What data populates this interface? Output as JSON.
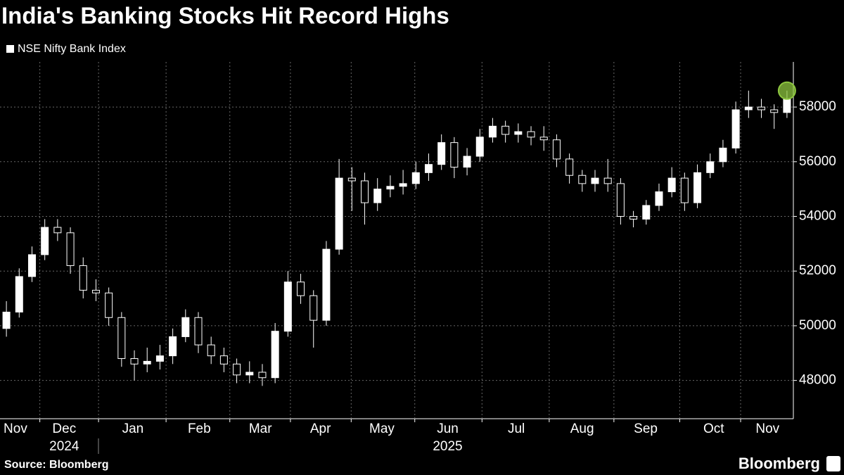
{
  "chart_data": {
    "type": "candlestick",
    "title": "India's Banking Stocks Hit Record Highs",
    "legend": "NSE Nifty Bank Index",
    "source": "Source: Bloomberg",
    "brand": "Bloomberg",
    "color": "#ffffff",
    "highlight_color": "#8dc63f",
    "grid": true,
    "open": [
      49900,
      50500,
      51800,
      52600,
      53600,
      53400,
      52200,
      51300,
      51200,
      50300,
      48800,
      48600,
      48700,
      48900,
      49600,
      50300,
      49300,
      48900,
      48600,
      48200,
      48300,
      48100,
      49800,
      51600,
      51100,
      50200,
      52800,
      55400,
      55300,
      54500,
      55000,
      55100,
      55200,
      55600,
      55900,
      56700,
      55800,
      56200,
      56900,
      57300,
      57000,
      57100,
      56900,
      56800,
      56100,
      55500,
      55200,
      55400,
      55200,
      54000,
      53900,
      54400,
      54900,
      55400,
      54500,
      55600,
      56000,
      56500,
      57900,
      58000,
      57900,
      57800
    ],
    "high": [
      50900,
      52100,
      52900,
      53900,
      53900,
      53600,
      52500,
      51700,
      51400,
      50500,
      49100,
      49200,
      49300,
      49900,
      50600,
      50500,
      49600,
      49200,
      48800,
      48700,
      48600,
      50100,
      52000,
      51900,
      51300,
      53100,
      56100,
      55800,
      55600,
      55400,
      55500,
      55700,
      56000,
      56300,
      57000,
      56900,
      56500,
      57200,
      57600,
      57500,
      57400,
      57300,
      57300,
      57000,
      56300,
      55700,
      55700,
      56100,
      55400,
      54200,
      54600,
      55200,
      55800,
      55600,
      55900,
      56300,
      56800,
      58200,
      58600,
      58300,
      58100,
      58600
    ],
    "low": [
      49600,
      50300,
      51600,
      52400,
      53100,
      51900,
      51000,
      50900,
      50000,
      48500,
      48000,
      48300,
      48400,
      48600,
      49400,
      49000,
      48600,
      48300,
      47900,
      47900,
      47800,
      47900,
      49600,
      50800,
      49200,
      50000,
      52600,
      54200,
      53700,
      54200,
      54700,
      54800,
      55000,
      55300,
      55700,
      55400,
      55500,
      56000,
      56700,
      56700,
      56700,
      56600,
      56400,
      55800,
      55200,
      54900,
      54900,
      54900,
      53700,
      53600,
      53700,
      54200,
      54700,
      54200,
      54300,
      55400,
      55800,
      56300,
      57600,
      57600,
      57200,
      57600
    ],
    "close": [
      50500,
      51800,
      52600,
      53600,
      53400,
      52200,
      51300,
      51200,
      50300,
      48800,
      48600,
      48700,
      48900,
      49600,
      50300,
      49300,
      48900,
      48600,
      48200,
      48300,
      48100,
      49800,
      51600,
      51100,
      50200,
      52800,
      55400,
      55300,
      54500,
      55000,
      55100,
      55200,
      55600,
      55900,
      56700,
      55800,
      56200,
      56900,
      57300,
      57000,
      57100,
      56900,
      56800,
      56100,
      55500,
      55200,
      55400,
      55200,
      54000,
      53900,
      54400,
      54900,
      55400,
      54500,
      55600,
      56000,
      56500,
      57900,
      58000,
      57900,
      57800,
      58300
    ],
    "xlim": [
      0,
      252
    ],
    "xticks": [
      {
        "value": 4.9,
        "label": "Nov"
      },
      {
        "value": 20.4,
        "label": "Dec"
      },
      {
        "value": 42.2,
        "label": "Jan"
      },
      {
        "value": 63.3,
        "label": "Feb"
      },
      {
        "value": 82.7,
        "label": "Mar"
      },
      {
        "value": 101.8,
        "label": "Apr"
      },
      {
        "value": 121.3,
        "label": "May"
      },
      {
        "value": 142.2,
        "label": "Jun"
      },
      {
        "value": 164,
        "label": "Jul"
      },
      {
        "value": 184.9,
        "label": "Aug"
      },
      {
        "value": 205.1,
        "label": "Sep"
      },
      {
        "value": 226.7,
        "label": "Oct"
      },
      {
        "value": 243.8,
        "label": "Nov"
      }
    ],
    "year_labels": [
      {
        "value": 20.4,
        "label": "2024"
      },
      {
        "value": 142.2,
        "label": "2025"
      }
    ],
    "ylim": [
      46600,
      59650
    ],
    "yticks": [
      48000,
      50000,
      52000,
      54000,
      56000,
      58000
    ]
  }
}
